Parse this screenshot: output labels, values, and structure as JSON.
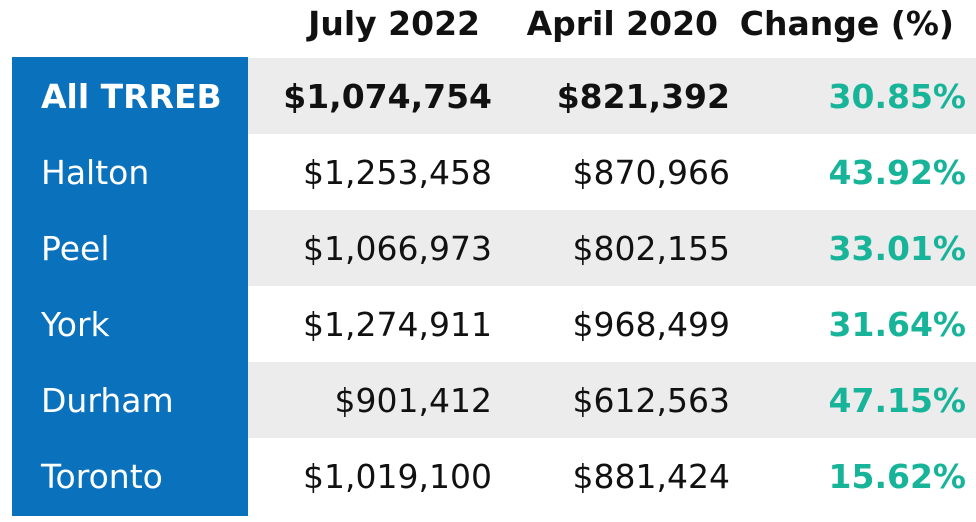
{
  "chart_data": {
    "type": "table",
    "columns": [
      "",
      "July 2022",
      "April 2020",
      "Change (%)"
    ],
    "rows": [
      {
        "region": "All TRREB",
        "july_2022": "$1,074,754",
        "april_2020": "$821,392",
        "change": "30.85%",
        "bold": true
      },
      {
        "region": "Halton",
        "july_2022": "$1,253,458",
        "april_2020": "$870,966",
        "change": "43.92%"
      },
      {
        "region": "Peel",
        "july_2022": "$1,066,973",
        "april_2020": "$802,155",
        "change": "33.01%"
      },
      {
        "region": "York",
        "july_2022": "$1,274,911",
        "april_2020": "$968,499",
        "change": "31.64%"
      },
      {
        "region": "Durham",
        "july_2022": "$901,412",
        "april_2020": "$612,563",
        "change": "47.15%"
      },
      {
        "region": "Toronto",
        "july_2022": "$1,019,100",
        "april_2020": "$881,424",
        "change": "15.62%"
      }
    ],
    "colors": {
      "region_column": "#0a71bd",
      "region_text": "#ffffff",
      "change_text": "#17b49a",
      "shaded_row": "#ececec",
      "text": "#111111"
    }
  }
}
